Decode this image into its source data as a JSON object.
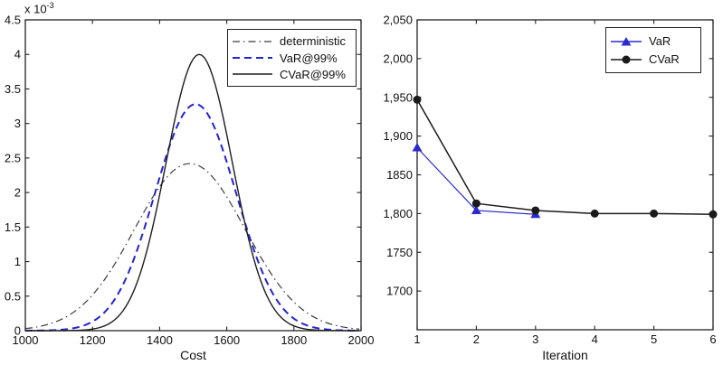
{
  "page": {
    "background": "#ffffff"
  },
  "chart_data": [
    {
      "type": "line",
      "title": "",
      "xlabel": "Cost",
      "ylabel": "",
      "y_axis_multiplier": {
        "base": "x 10",
        "exponent": "-3"
      },
      "xlim": [
        1000,
        2000
      ],
      "ylim_e3": [
        0,
        4.5
      ],
      "grid": false,
      "legend_position": "top-right",
      "xticks": {
        "values": [
          1000,
          1200,
          1400,
          1600,
          1800,
          2000
        ],
        "labels": [
          "1000",
          "1200",
          "1400",
          "1600",
          "1800",
          "2000"
        ]
      },
      "yticks": {
        "values_e3": [
          0,
          0.5,
          1,
          1.5,
          2,
          2.5,
          3,
          3.5,
          4,
          4.5
        ],
        "labels": [
          "0",
          "0.5",
          "1",
          "1.5",
          "2",
          "2.5",
          "3",
          "3.5",
          "4",
          "4.5"
        ]
      },
      "series": [
        {
          "name": "deterministic",
          "line_style": "dash-dot",
          "color": "#3c3c3c",
          "shape": "gaussian",
          "mean": 1490,
          "sigma": 165,
          "peak_e3": 2.42
        },
        {
          "name": "VaR@99%",
          "line_style": "dashed",
          "color": "#2323d3",
          "shape": "gaussian",
          "mean": 1507,
          "sigma": 121,
          "peak_e3": 3.28
        },
        {
          "name": "CVaR@99%",
          "line_style": "solid",
          "color": "#1c1c1c",
          "shape": "gaussian",
          "mean": 1518,
          "sigma": 99,
          "peak_e3": 4.0
        }
      ]
    },
    {
      "type": "line",
      "title": "",
      "xlabel": "Iteration",
      "ylabel": "",
      "xlim": [
        1,
        6
      ],
      "ylim": [
        1650,
        2050
      ],
      "grid": false,
      "legend_position": "top-right",
      "xticks": {
        "values": [
          1,
          2,
          3,
          4,
          5,
          6
        ],
        "labels": [
          "1",
          "2",
          "3",
          "4",
          "5",
          "6"
        ]
      },
      "yticks": {
        "values": [
          1700,
          1750,
          1800,
          1850,
          1900,
          1950,
          2000,
          2050
        ],
        "labels": [
          "1700",
          "1750",
          "1,800",
          "1850",
          "1,900",
          "1,950",
          "2,000",
          "2,050"
        ]
      },
      "series": [
        {
          "name": "VaR",
          "line_style": "solid",
          "color": "#2a2ad0",
          "marker": "triangle",
          "x": [
            1,
            2,
            3
          ],
          "y": [
            1885,
            1804,
            1799
          ]
        },
        {
          "name": "CVaR",
          "line_style": "solid",
          "color": "#1a1a1a",
          "marker": "circle",
          "x": [
            1,
            2,
            3,
            4,
            5,
            6
          ],
          "y": [
            1947,
            1813,
            1804,
            1800,
            1800,
            1799
          ]
        }
      ]
    }
  ]
}
